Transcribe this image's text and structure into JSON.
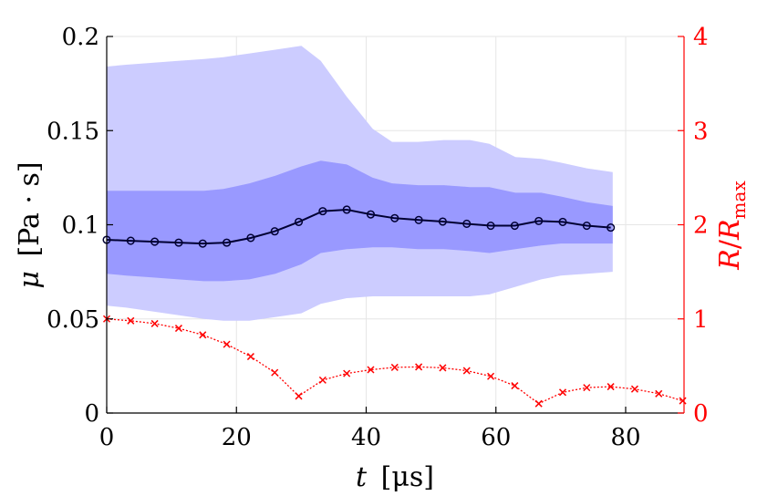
{
  "chart_data": {
    "type": "line",
    "xlabel": {
      "var": "t",
      "unit": "[μs]"
    },
    "ylabel_left": {
      "var": "μ",
      "unit": "[Pa · s]"
    },
    "ylabel_right": {
      "num": "R",
      "den": "R",
      "sub": "max"
    },
    "xlim": [
      0,
      89
    ],
    "ylim_left": [
      0,
      0.2
    ],
    "ylim_right": [
      0,
      4
    ],
    "x_ticks": [
      "0",
      "20",
      "40",
      "60",
      "80"
    ],
    "x_tick_values": [
      0,
      20,
      40,
      60,
      80
    ],
    "y_left_ticks": [
      "0",
      "0.05",
      "0.1",
      "0.15",
      "0.2"
    ],
    "y_left_tick_values": [
      0,
      0.05,
      0.1,
      0.15,
      0.2
    ],
    "y_right_ticks": [
      "0",
      "1",
      "2",
      "3",
      "4"
    ],
    "y_right_tick_values": [
      0,
      1,
      2,
      3,
      4
    ],
    "grid": true,
    "colors": {
      "outer_band": "#ccccff",
      "inner_band": "#9999ff",
      "mean_line": "#000033",
      "radius_line": "#ff0000",
      "right_axis": "#ff0000",
      "left_axis": "#000000",
      "grid": "#e6e6e6"
    },
    "outer_band": {
      "x": [
        0,
        3,
        7,
        11,
        15,
        18,
        22,
        26,
        30,
        33,
        37,
        41,
        44,
        48,
        52,
        56,
        59,
        63,
        67,
        70,
        74,
        78
      ],
      "upper": [
        0.184,
        0.185,
        0.186,
        0.187,
        0.188,
        0.189,
        0.191,
        0.193,
        0.195,
        0.187,
        0.168,
        0.151,
        0.144,
        0.144,
        0.145,
        0.145,
        0.143,
        0.136,
        0.135,
        0.133,
        0.13,
        0.128
      ],
      "lower": [
        0.057,
        0.056,
        0.054,
        0.052,
        0.05,
        0.049,
        0.049,
        0.051,
        0.053,
        0.058,
        0.061,
        0.062,
        0.062,
        0.062,
        0.062,
        0.062,
        0.063,
        0.067,
        0.071,
        0.073,
        0.074,
        0.075
      ]
    },
    "inner_band": {
      "x": [
        0,
        3,
        7,
        11,
        15,
        18,
        22,
        26,
        30,
        33,
        37,
        41,
        44,
        48,
        52,
        56,
        59,
        63,
        67,
        70,
        74,
        78
      ],
      "upper": [
        0.118,
        0.118,
        0.118,
        0.118,
        0.118,
        0.119,
        0.122,
        0.126,
        0.131,
        0.134,
        0.132,
        0.125,
        0.122,
        0.121,
        0.121,
        0.12,
        0.12,
        0.117,
        0.117,
        0.115,
        0.112,
        0.11
      ],
      "lower": [
        0.074,
        0.073,
        0.072,
        0.071,
        0.07,
        0.07,
        0.071,
        0.074,
        0.079,
        0.085,
        0.087,
        0.088,
        0.088,
        0.087,
        0.087,
        0.086,
        0.085,
        0.087,
        0.089,
        0.09,
        0.09,
        0.09
      ]
    },
    "series": [
      {
        "axis": "left",
        "marker": "circle",
        "x": [
          0,
          3.7,
          7.4,
          11.1,
          14.8,
          18.5,
          22.2,
          25.9,
          29.6,
          33.3,
          37,
          40.7,
          44.4,
          48.1,
          51.8,
          55.5,
          59.2,
          62.9,
          66.6,
          70.3,
          74,
          77.7
        ],
        "y": [
          0.092,
          0.0915,
          0.091,
          0.0905,
          0.09,
          0.0905,
          0.093,
          0.0965,
          0.1015,
          0.1072,
          0.108,
          0.1055,
          0.1035,
          0.1025,
          0.1017,
          0.1005,
          0.0995,
          0.0995,
          0.102,
          0.1015,
          0.0995,
          0.0985
        ]
      },
      {
        "axis": "right",
        "marker": "x",
        "x": [
          0,
          3.7,
          7.4,
          11.1,
          14.8,
          18.5,
          22.2,
          25.9,
          29.6,
          33.3,
          37,
          40.7,
          44.4,
          48.1,
          51.8,
          55.5,
          59.2,
          62.9,
          66.6,
          70.3,
          74,
          77.7,
          81.4,
          85.1,
          88.8
        ],
        "y": [
          1.0,
          0.98,
          0.95,
          0.9,
          0.83,
          0.73,
          0.6,
          0.43,
          0.18,
          0.35,
          0.42,
          0.46,
          0.485,
          0.49,
          0.48,
          0.45,
          0.39,
          0.29,
          0.1,
          0.22,
          0.27,
          0.28,
          0.255,
          0.205,
          0.13
        ]
      }
    ]
  }
}
